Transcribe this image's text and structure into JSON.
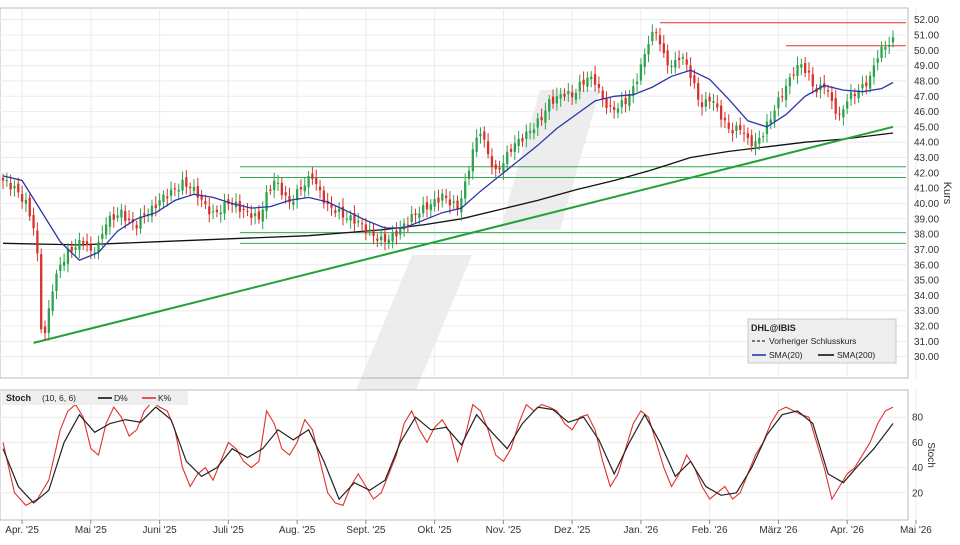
{
  "chart_data": [
    {
      "type": "candlestick",
      "panel": "price",
      "symbol": "DHL@IBIS",
      "ylabel": "Kurs",
      "ylim": [
        29,
        52.5
      ],
      "y_ticks": [
        30,
        31,
        32,
        33,
        34,
        35,
        36,
        37,
        38,
        39,
        40,
        41,
        42,
        43,
        44,
        45,
        46,
        47,
        48,
        49,
        50,
        51,
        52
      ],
      "x_ticks": [
        "Apr. '25",
        "Mai '25",
        "Juni '25",
        "Juli '25",
        "Aug. '25",
        "Sept. '25",
        "Okt. '25",
        "Nov. '25",
        "Dez. '25",
        "Jan. '26",
        "Feb. '26",
        "März '26",
        "Apr. '26",
        "Mai '26"
      ],
      "legend": {
        "placement": "bottom-right",
        "title": "DHL@IBIS",
        "entries": [
          "Vorheriger Schlusskurs",
          "SMA(20)",
          "SMA(200)"
        ]
      },
      "close_anchors": [
        [
          0,
          41.5
        ],
        [
          3,
          41.0
        ],
        [
          6,
          40.0
        ],
        [
          8,
          38.5
        ],
        [
          9,
          36.5
        ],
        [
          10,
          32.0
        ],
        [
          11,
          31.5
        ],
        [
          12,
          33.0
        ],
        [
          13,
          34.5
        ],
        [
          15,
          36.0
        ],
        [
          17,
          36.8
        ],
        [
          19,
          37.2
        ],
        [
          21,
          37.6
        ],
        [
          23,
          36.8
        ],
        [
          25,
          37.3
        ],
        [
          27,
          38.8
        ],
        [
          29,
          39.1
        ],
        [
          31,
          39.4
        ],
        [
          33,
          38.8
        ],
        [
          35,
          38.6
        ],
        [
          37,
          39.3
        ],
        [
          39,
          39.6
        ],
        [
          41,
          40.2
        ],
        [
          43,
          40.6
        ],
        [
          45,
          40.9
        ],
        [
          47,
          41.3
        ],
        [
          49,
          41.1
        ],
        [
          51,
          40.6
        ],
        [
          53,
          39.8
        ],
        [
          55,
          39.3
        ],
        [
          57,
          39.6
        ],
        [
          59,
          40.1
        ],
        [
          61,
          39.9
        ],
        [
          63,
          39.5
        ],
        [
          65,
          39.3
        ],
        [
          67,
          39.0
        ],
        [
          69,
          40.5
        ],
        [
          71,
          41.5
        ],
        [
          73,
          40.8
        ],
        [
          75,
          40.0
        ],
        [
          77,
          40.7
        ],
        [
          79,
          41.3
        ],
        [
          81,
          41.8
        ],
        [
          83,
          40.7
        ],
        [
          85,
          39.8
        ],
        [
          87,
          39.6
        ],
        [
          89,
          39.2
        ],
        [
          91,
          39.0
        ],
        [
          93,
          38.8
        ],
        [
          95,
          38.3
        ],
        [
          97,
          37.9
        ],
        [
          99,
          37.6
        ],
        [
          101,
          37.7
        ],
        [
          103,
          38.1
        ],
        [
          105,
          38.6
        ],
        [
          107,
          39.1
        ],
        [
          109,
          39.5
        ],
        [
          111,
          39.8
        ],
        [
          113,
          40.1
        ],
        [
          115,
          40.5
        ],
        [
          117,
          40.1
        ],
        [
          119,
          39.7
        ],
        [
          121,
          41.2
        ],
        [
          123,
          43.5
        ],
        [
          125,
          44.8
        ],
        [
          127,
          43.2
        ],
        [
          129,
          42.0
        ],
        [
          131,
          42.7
        ],
        [
          133,
          43.6
        ],
        [
          135,
          44.1
        ],
        [
          137,
          44.5
        ],
        [
          139,
          45.0
        ],
        [
          141,
          45.6
        ],
        [
          143,
          46.6
        ],
        [
          145,
          46.9
        ],
        [
          147,
          47.2
        ],
        [
          149,
          47.0
        ],
        [
          151,
          47.7
        ],
        [
          153,
          48.2
        ],
        [
          155,
          48.0
        ],
        [
          157,
          46.8
        ],
        [
          159,
          46.1
        ],
        [
          161,
          46.3
        ],
        [
          163,
          46.7
        ],
        [
          165,
          47.5
        ],
        [
          167,
          48.9
        ],
        [
          169,
          50.6
        ],
        [
          171,
          51.3
        ],
        [
          173,
          49.6
        ],
        [
          175,
          48.9
        ],
        [
          177,
          49.6
        ],
        [
          179,
          49.1
        ],
        [
          181,
          47.6
        ],
        [
          183,
          46.3
        ],
        [
          185,
          46.9
        ],
        [
          187,
          46.2
        ],
        [
          189,
          45.2
        ],
        [
          191,
          44.7
        ],
        [
          193,
          45.0
        ],
        [
          195,
          44.1
        ],
        [
          197,
          43.9
        ],
        [
          199,
          44.6
        ],
        [
          201,
          45.6
        ],
        [
          203,
          46.7
        ],
        [
          205,
          47.6
        ],
        [
          207,
          48.6
        ],
        [
          209,
          49.1
        ],
        [
          211,
          48.3
        ],
        [
          213,
          47.3
        ],
        [
          215,
          47.8
        ],
        [
          217,
          46.6
        ],
        [
          219,
          45.6
        ],
        [
          221,
          46.8
        ],
        [
          223,
          47.2
        ],
        [
          225,
          47.6
        ],
        [
          227,
          48.2
        ],
        [
          229,
          49.7
        ],
        [
          231,
          50.3
        ],
        [
          233,
          50.6
        ]
      ],
      "sma20": [
        [
          0,
          41.8
        ],
        [
          5,
          41.5
        ],
        [
          10,
          39.5
        ],
        [
          15,
          37.5
        ],
        [
          20,
          36.3
        ],
        [
          25,
          36.8
        ],
        [
          30,
          38.2
        ],
        [
          35,
          39.0
        ],
        [
          40,
          39.4
        ],
        [
          45,
          40.2
        ],
        [
          50,
          40.6
        ],
        [
          55,
          40.4
        ],
        [
          60,
          40.0
        ],
        [
          65,
          39.7
        ],
        [
          70,
          39.8
        ],
        [
          75,
          40.2
        ],
        [
          80,
          40.4
        ],
        [
          85,
          40.1
        ],
        [
          90,
          39.5
        ],
        [
          95,
          38.9
        ],
        [
          100,
          38.4
        ],
        [
          105,
          38.4
        ],
        [
          110,
          38.9
        ],
        [
          115,
          39.4
        ],
        [
          120,
          39.7
        ],
        [
          125,
          40.8
        ],
        [
          130,
          41.8
        ],
        [
          135,
          42.8
        ],
        [
          140,
          43.8
        ],
        [
          145,
          44.9
        ],
        [
          150,
          45.8
        ],
        [
          155,
          46.7
        ],
        [
          160,
          47.0
        ],
        [
          165,
          47.1
        ],
        [
          170,
          47.6
        ],
        [
          175,
          48.3
        ],
        [
          180,
          48.7
        ],
        [
          185,
          48.1
        ],
        [
          190,
          46.8
        ],
        [
          195,
          45.4
        ],
        [
          200,
          45.0
        ],
        [
          205,
          45.8
        ],
        [
          210,
          47.0
        ],
        [
          215,
          47.7
        ],
        [
          220,
          47.4
        ],
        [
          225,
          47.3
        ],
        [
          230,
          47.5
        ],
        [
          233,
          47.9
        ]
      ],
      "sma200": [
        [
          0,
          37.4
        ],
        [
          20,
          37.3
        ],
        [
          40,
          37.5
        ],
        [
          60,
          37.7
        ],
        [
          80,
          37.9
        ],
        [
          90,
          38.1
        ],
        [
          100,
          38.3
        ],
        [
          110,
          38.6
        ],
        [
          120,
          39.0
        ],
        [
          130,
          39.6
        ],
        [
          140,
          40.2
        ],
        [
          150,
          40.9
        ],
        [
          160,
          41.5
        ],
        [
          170,
          42.2
        ],
        [
          180,
          43.0
        ],
        [
          190,
          43.4
        ],
        [
          200,
          43.7
        ],
        [
          210,
          44.0
        ],
        [
          220,
          44.2
        ],
        [
          233,
          44.6
        ]
      ],
      "trendline": [
        [
          8,
          30.9
        ],
        [
          233,
          45.0
        ]
      ],
      "horizontal_lines_green": [
        42.4,
        41.7,
        38.1,
        37.4
      ],
      "horizontal_lines_red": [
        51.8,
        50.3
      ]
    },
    {
      "type": "line",
      "panel": "stochastic",
      "title": "Stoch",
      "params": "(10, 6, 6)",
      "ylabel": "Stoch",
      "ylim": [
        0,
        100
      ],
      "y_ticks": [
        20,
        40,
        60,
        80
      ],
      "legend": {
        "placement": "top-left",
        "entries": [
          "D%",
          "K%"
        ]
      },
      "k_anchors": [
        [
          0,
          60
        ],
        [
          3,
          20
        ],
        [
          6,
          10
        ],
        [
          9,
          15
        ],
        [
          12,
          30
        ],
        [
          15,
          70
        ],
        [
          17,
          85
        ],
        [
          19,
          90
        ],
        [
          21,
          80
        ],
        [
          23,
          55
        ],
        [
          25,
          50
        ],
        [
          27,
          75
        ],
        [
          29,
          88
        ],
        [
          31,
          80
        ],
        [
          33,
          65
        ],
        [
          35,
          70
        ],
        [
          37,
          85
        ],
        [
          39,
          92
        ],
        [
          41,
          88
        ],
        [
          43,
          85
        ],
        [
          45,
          70
        ],
        [
          47,
          40
        ],
        [
          49,
          25
        ],
        [
          51,
          35
        ],
        [
          53,
          40
        ],
        [
          55,
          30
        ],
        [
          57,
          45
        ],
        [
          59,
          60
        ],
        [
          61,
          55
        ],
        [
          63,
          45
        ],
        [
          65,
          40
        ],
        [
          67,
          45
        ],
        [
          69,
          85
        ],
        [
          71,
          75
        ],
        [
          73,
          55
        ],
        [
          75,
          50
        ],
        [
          77,
          60
        ],
        [
          79,
          78
        ],
        [
          81,
          70
        ],
        [
          83,
          45
        ],
        [
          85,
          20
        ],
        [
          87,
          12
        ],
        [
          89,
          10
        ],
        [
          91,
          25
        ],
        [
          93,
          35
        ],
        [
          95,
          25
        ],
        [
          97,
          15
        ],
        [
          99,
          20
        ],
        [
          101,
          35
        ],
        [
          103,
          50
        ],
        [
          105,
          75
        ],
        [
          107,
          85
        ],
        [
          109,
          70
        ],
        [
          111,
          60
        ],
        [
          113,
          72
        ],
        [
          115,
          78
        ],
        [
          117,
          68
        ],
        [
          119,
          45
        ],
        [
          121,
          65
        ],
        [
          123,
          90
        ],
        [
          125,
          85
        ],
        [
          127,
          70
        ],
        [
          129,
          50
        ],
        [
          131,
          45
        ],
        [
          133,
          55
        ],
        [
          135,
          75
        ],
        [
          137,
          90
        ],
        [
          139,
          85
        ],
        [
          141,
          90
        ],
        [
          143,
          88
        ],
        [
          145,
          85
        ],
        [
          147,
          75
        ],
        [
          149,
          70
        ],
        [
          151,
          80
        ],
        [
          153,
          82
        ],
        [
          155,
          70
        ],
        [
          157,
          45
        ],
        [
          159,
          25
        ],
        [
          161,
          35
        ],
        [
          163,
          55
        ],
        [
          165,
          75
        ],
        [
          167,
          85
        ],
        [
          169,
          80
        ],
        [
          171,
          60
        ],
        [
          173,
          40
        ],
        [
          175,
          25
        ],
        [
          177,
          35
        ],
        [
          179,
          50
        ],
        [
          181,
          40
        ],
        [
          183,
          25
        ],
        [
          185,
          15
        ],
        [
          187,
          20
        ],
        [
          189,
          25
        ],
        [
          191,
          15
        ],
        [
          193,
          20
        ],
        [
          195,
          35
        ],
        [
          197,
          50
        ],
        [
          199,
          60
        ],
        [
          201,
          75
        ],
        [
          203,
          85
        ],
        [
          205,
          88
        ],
        [
          207,
          85
        ],
        [
          209,
          82
        ],
        [
          211,
          80
        ],
        [
          213,
          60
        ],
        [
          215,
          40
        ],
        [
          217,
          15
        ],
        [
          219,
          25
        ],
        [
          221,
          35
        ],
        [
          223,
          40
        ],
        [
          225,
          50
        ],
        [
          227,
          60
        ],
        [
          229,
          75
        ],
        [
          231,
          85
        ],
        [
          233,
          88
        ]
      ],
      "d_anchors": [
        [
          0,
          55
        ],
        [
          4,
          25
        ],
        [
          8,
          12
        ],
        [
          12,
          22
        ],
        [
          16,
          60
        ],
        [
          20,
          82
        ],
        [
          24,
          68
        ],
        [
          28,
          75
        ],
        [
          32,
          78
        ],
        [
          36,
          76
        ],
        [
          40,
          88
        ],
        [
          44,
          78
        ],
        [
          48,
          45
        ],
        [
          52,
          33
        ],
        [
          56,
          40
        ],
        [
          60,
          55
        ],
        [
          64,
          48
        ],
        [
          68,
          55
        ],
        [
          72,
          70
        ],
        [
          76,
          62
        ],
        [
          80,
          70
        ],
        [
          84,
          45
        ],
        [
          88,
          15
        ],
        [
          92,
          28
        ],
        [
          96,
          22
        ],
        [
          100,
          30
        ],
        [
          104,
          60
        ],
        [
          108,
          80
        ],
        [
          112,
          70
        ],
        [
          116,
          72
        ],
        [
          120,
          58
        ],
        [
          124,
          82
        ],
        [
          128,
          68
        ],
        [
          132,
          55
        ],
        [
          136,
          75
        ],
        [
          140,
          88
        ],
        [
          144,
          86
        ],
        [
          148,
          76
        ],
        [
          152,
          80
        ],
        [
          156,
          62
        ],
        [
          160,
          35
        ],
        [
          164,
          60
        ],
        [
          168,
          82
        ],
        [
          172,
          60
        ],
        [
          176,
          33
        ],
        [
          180,
          45
        ],
        [
          184,
          25
        ],
        [
          188,
          18
        ],
        [
          192,
          20
        ],
        [
          196,
          40
        ],
        [
          200,
          66
        ],
        [
          204,
          82
        ],
        [
          208,
          85
        ],
        [
          212,
          75
        ],
        [
          216,
          35
        ],
        [
          220,
          28
        ],
        [
          224,
          42
        ],
        [
          228,
          55
        ],
        [
          233,
          75
        ]
      ]
    }
  ]
}
